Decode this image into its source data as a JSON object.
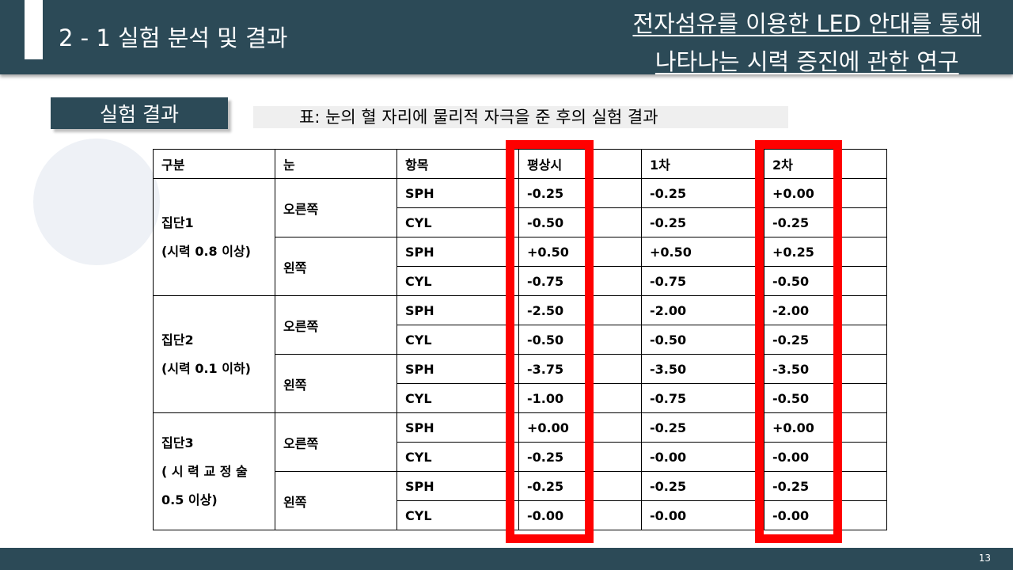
{
  "header": {
    "section_title": "2 - 1 실험 분석 및 결과",
    "research_title_line1": "전자섬유를 이용한 LED 안대를 통해",
    "research_title_line2": "나타나는 시력 증진에 관한 연구"
  },
  "result_label": "실험 결과",
  "caption": "표: 눈의 혈 자리에 물리적 자극을 준 후의 실험 결과",
  "table": {
    "headers": [
      "구분",
      "눈",
      "항목",
      "평상시",
      "1차",
      "2차"
    ],
    "groups": [
      {
        "name": "집단1\n(시력 0.8 이상)",
        "eyes": [
          {
            "eye": "오른쪽",
            "rows": [
              {
                "item": "SPH",
                "normal": "-0.25",
                "first": "-0.25",
                "second": "+0.00"
              },
              {
                "item": "CYL",
                "normal": "-0.50",
                "first": "-0.25",
                "second": "-0.25"
              }
            ]
          },
          {
            "eye": "왼쪽",
            "rows": [
              {
                "item": "SPH",
                "normal": "+0.50",
                "first": "+0.50",
                "second": "+0.25"
              },
              {
                "item": "CYL",
                "normal": "-0.75",
                "first": "-0.75",
                "second": "-0.50"
              }
            ]
          }
        ]
      },
      {
        "name": "집단2\n(시력 0.1 이하)",
        "eyes": [
          {
            "eye": "오른쪽",
            "rows": [
              {
                "item": "SPH",
                "normal": "-2.50",
                "first": "-2.00",
                "second": "-2.00"
              },
              {
                "item": "CYL",
                "normal": "-0.50",
                "first": "-0.50",
                "second": "-0.25"
              }
            ]
          },
          {
            "eye": "왼쪽",
            "rows": [
              {
                "item": "SPH",
                "normal": "-3.75",
                "first": "-3.50",
                "second": "-3.50"
              },
              {
                "item": "CYL",
                "normal": "-1.00",
                "first": "-0.75",
                "second": "-0.50"
              }
            ]
          }
        ]
      },
      {
        "name": "집단3\n( 시 력 교 정 술\n0.5 이상)",
        "eyes": [
          {
            "eye": "오른쪽",
            "rows": [
              {
                "item": "SPH",
                "normal": "+0.00",
                "first": "-0.25",
                "second": "+0.00"
              },
              {
                "item": "CYL",
                "normal": "-0.25",
                "first": "-0.00",
                "second": "-0.00"
              }
            ]
          },
          {
            "eye": "왼쪽",
            "rows": [
              {
                "item": "SPH",
                "normal": "-0.25",
                "first": "-0.25",
                "second": "-0.25"
              },
              {
                "item": "CYL",
                "normal": "-0.00",
                "first": "-0.00",
                "second": "-0.00"
              }
            ]
          }
        ]
      }
    ]
  },
  "highlight_color": "#ff0000",
  "header_color": "#2c4a57",
  "page_number": "13"
}
